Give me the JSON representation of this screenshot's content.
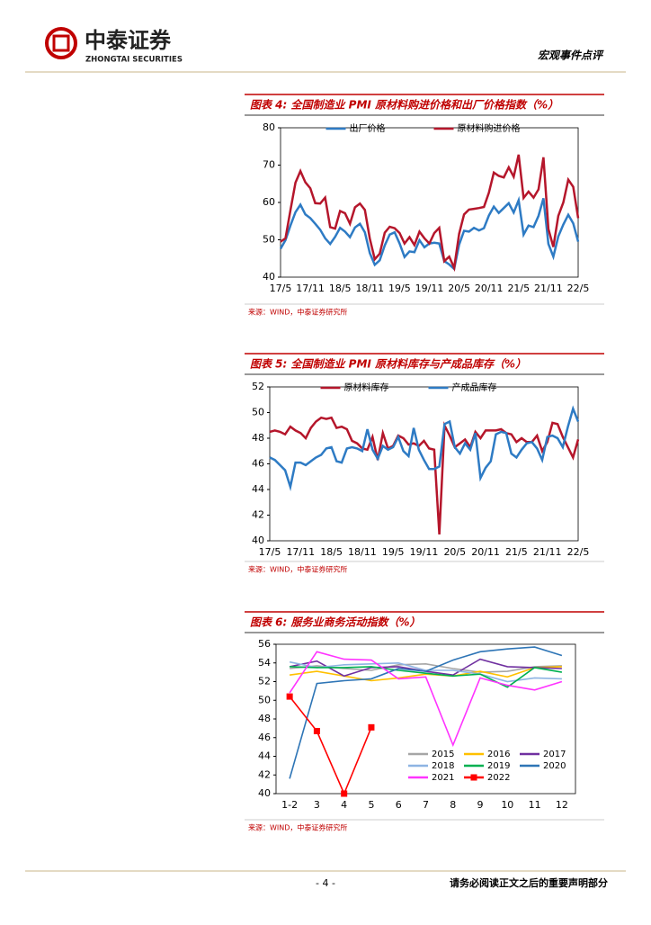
{
  "header": {
    "company": "中泰证券",
    "company_en": "ZHONGTAI SECURITIES",
    "report_type": "宏观事件点评"
  },
  "chart_data": [
    {
      "type": "line",
      "title": "图表 4: 全国制造业 PMI 原材料购进价格和出厂价格指数（%）",
      "source": "来源：WIND，中泰证券研究所",
      "legend": "top",
      "categories": [
        "17/5",
        null,
        null,
        null,
        null,
        null,
        "17/11",
        null,
        null,
        null,
        null,
        null,
        "18/5",
        null,
        null,
        null,
        null,
        null,
        "18/11",
        null,
        null,
        null,
        null,
        null,
        "19/5",
        null,
        null,
        null,
        null,
        null,
        "19/11",
        null,
        null,
        null,
        null,
        null,
        "20/5",
        null,
        null,
        null,
        null,
        null,
        "20/11",
        null,
        null,
        null,
        null,
        null,
        "21/5",
        null,
        null,
        null,
        null,
        null,
        "21/11",
        null,
        null,
        null,
        null,
        null,
        "22/5"
      ],
      "ylim": [
        40,
        80
      ],
      "yticks": [
        40,
        50,
        60,
        70,
        80
      ],
      "series": [
        {
          "name": "出厂价格",
          "color": "#2e7bc4",
          "values": [
            47.6,
            49.9,
            53.8,
            57.4,
            59.4,
            56.8,
            55.8,
            54.3,
            52.7,
            50.4,
            48.9,
            50.8,
            53.2,
            52.2,
            50.7,
            53.3,
            54.3,
            52.0,
            46.4,
            43.3,
            44.5,
            48.5,
            51.4,
            52.0,
            49.0,
            45.4,
            46.9,
            46.7,
            49.9,
            48.0,
            49.0,
            49.2,
            49.0,
            44.3,
            43.4,
            42.2,
            48.7,
            52.4,
            52.2,
            53.2,
            52.5,
            53.1,
            56.5,
            58.9,
            57.2,
            58.5,
            59.8,
            57.3,
            60.6,
            51.4,
            53.8,
            53.4,
            56.4,
            61.1,
            48.9,
            45.5,
            50.9,
            54.1,
            56.7,
            54.4,
            49.5
          ]
        },
        {
          "name": "原材料购进价格",
          "color": "#b5162b",
          "values": [
            49.5,
            50.4,
            57.9,
            65.3,
            68.4,
            65.4,
            63.8,
            59.8,
            59.7,
            61.3,
            53.4,
            53.0,
            57.7,
            57.1,
            54.3,
            58.7,
            59.7,
            58.0,
            50.3,
            44.8,
            46.3,
            51.9,
            53.5,
            53.1,
            51.8,
            49.0,
            50.7,
            48.6,
            52.2,
            50.4,
            49.0,
            51.8,
            53.2,
            44.3,
            45.5,
            42.5,
            51.6,
            56.8,
            58.1,
            58.3,
            58.5,
            58.8,
            62.6,
            68.0,
            67.1,
            66.7,
            69.4,
            66.9,
            72.8,
            61.2,
            62.9,
            61.3,
            63.5,
            72.1,
            52.9,
            48.1,
            56.4,
            60.0,
            66.1,
            64.2,
            55.8
          ]
        }
      ]
    },
    {
      "type": "line",
      "title": "图表 5: 全国制造业 PMI 原材料库存与产成品库存（%）",
      "source": "来源：WIND，中泰证券研究所",
      "legend": "top",
      "categories": [
        "17/5",
        null,
        null,
        null,
        null,
        null,
        "17/11",
        null,
        null,
        null,
        null,
        null,
        "18/5",
        null,
        null,
        null,
        null,
        null,
        "18/11",
        null,
        null,
        null,
        null,
        null,
        "19/5",
        null,
        null,
        null,
        null,
        null,
        "19/11",
        null,
        null,
        null,
        null,
        null,
        "20/5",
        null,
        null,
        null,
        null,
        null,
        "20/11",
        null,
        null,
        null,
        null,
        null,
        "21/5",
        null,
        null,
        null,
        null,
        null,
        "21/11",
        null,
        null,
        null,
        null,
        null,
        "22/5"
      ],
      "ylim": [
        40,
        52
      ],
      "yticks": [
        40,
        42,
        44,
        46,
        48,
        50,
        52
      ],
      "series": [
        {
          "name": "原材料库存",
          "color": "#b5162b",
          "values": [
            48.5,
            48.6,
            48.5,
            48.3,
            48.9,
            48.6,
            48.4,
            48.0,
            48.8,
            49.3,
            49.6,
            49.5,
            49.6,
            48.8,
            48.9,
            48.7,
            47.8,
            47.6,
            47.2,
            47.1,
            48.1,
            46.3,
            48.4,
            47.2,
            47.4,
            48.2,
            48.0,
            47.5,
            47.6,
            47.4,
            47.8,
            47.2,
            47.1,
            40.5,
            49.0,
            48.2,
            47.3,
            47.6,
            47.9,
            47.3,
            48.5,
            48.0,
            48.6,
            48.6,
            48.6,
            48.7,
            48.4,
            48.3,
            47.7,
            48.0,
            47.7,
            47.7,
            48.2,
            47.0,
            47.7,
            49.2,
            49.1,
            48.1,
            47.3,
            46.5,
            47.9
          ]
        },
        {
          "name": "产成品库存",
          "color": "#2e7bc4",
          "values": [
            46.5,
            46.3,
            45.9,
            45.5,
            44.2,
            46.1,
            46.1,
            45.9,
            46.2,
            46.5,
            46.7,
            47.2,
            47.3,
            46.2,
            46.1,
            47.2,
            47.3,
            47.2,
            47.0,
            48.7,
            47.1,
            46.4,
            47.4,
            47.1,
            47.3,
            48.1,
            47.0,
            46.6,
            48.8,
            47.1,
            46.3,
            45.6,
            45.6,
            45.8,
            49.1,
            49.3,
            47.3,
            46.8,
            47.6,
            47.1,
            48.4,
            44.9,
            45.7,
            46.2,
            48.3,
            48.5,
            48.4,
            46.8,
            46.5,
            47.1,
            47.6,
            47.7,
            47.2,
            46.3,
            48.1,
            48.2,
            48.0,
            47.3,
            48.9,
            50.3,
            49.3
          ]
        }
      ]
    },
    {
      "type": "line",
      "title": "图表 6: 服务业商务活动指数（%）",
      "source": "来源：WIND，中泰证券研究所",
      "legend": "lower right",
      "categories": [
        "1-2",
        "3",
        "4",
        "5",
        "6",
        "7",
        "8",
        "9",
        "10",
        "11",
        "12"
      ],
      "ylim": [
        40,
        56
      ],
      "yticks": [
        40,
        42,
        44,
        46,
        48,
        50,
        52,
        54,
        56
      ],
      "series": [
        {
          "name": "2015",
          "color": "#a6a6a6",
          "values": [
            53.4,
            53.7,
            53.4,
            53.2,
            53.8,
            53.9,
            53.4,
            53.0,
            53.1,
            53.6,
            53.7
          ]
        },
        {
          "name": "2016",
          "color": "#ffc000",
          "values": [
            52.7,
            53.1,
            52.6,
            52.1,
            52.4,
            52.8,
            52.6,
            53.1,
            52.5,
            53.5,
            53.6
          ]
        },
        {
          "name": "2017",
          "color": "#7030a0",
          "values": [
            53.6,
            54.2,
            52.6,
            53.5,
            53.6,
            53.1,
            52.7,
            54.4,
            53.6,
            53.5,
            53.4
          ]
        },
        {
          "name": "2018",
          "color": "#8eb4e3",
          "values": [
            54.1,
            53.5,
            53.8,
            53.9,
            54.0,
            53.2,
            53.2,
            52.8,
            52.0,
            52.4,
            52.3
          ]
        },
        {
          "name": "2019",
          "color": "#00b050",
          "values": [
            53.6,
            53.5,
            53.5,
            53.6,
            53.2,
            52.9,
            52.6,
            52.8,
            51.4,
            53.5,
            53.0
          ]
        },
        {
          "name": "2020",
          "color": "#2e75b6",
          "values": [
            41.6,
            51.8,
            52.1,
            52.3,
            53.4,
            53.1,
            54.3,
            55.2,
            55.5,
            55.7,
            54.8
          ]
        },
        {
          "name": "2021",
          "color": "#ff33ff",
          "values": [
            50.8,
            55.2,
            54.4,
            54.3,
            52.3,
            52.5,
            45.2,
            52.4,
            51.6,
            51.1,
            52.0
          ]
        },
        {
          "name": "2022",
          "color": "#ff0000",
          "marker": "square",
          "values": [
            50.4,
            46.7,
            40.0,
            47.1,
            null,
            null,
            null,
            null,
            null,
            null,
            null
          ]
        }
      ]
    }
  ],
  "footer": {
    "page": "- 4 -",
    "disclaimer": "请务必阅读正文之后的重要声明部分"
  }
}
